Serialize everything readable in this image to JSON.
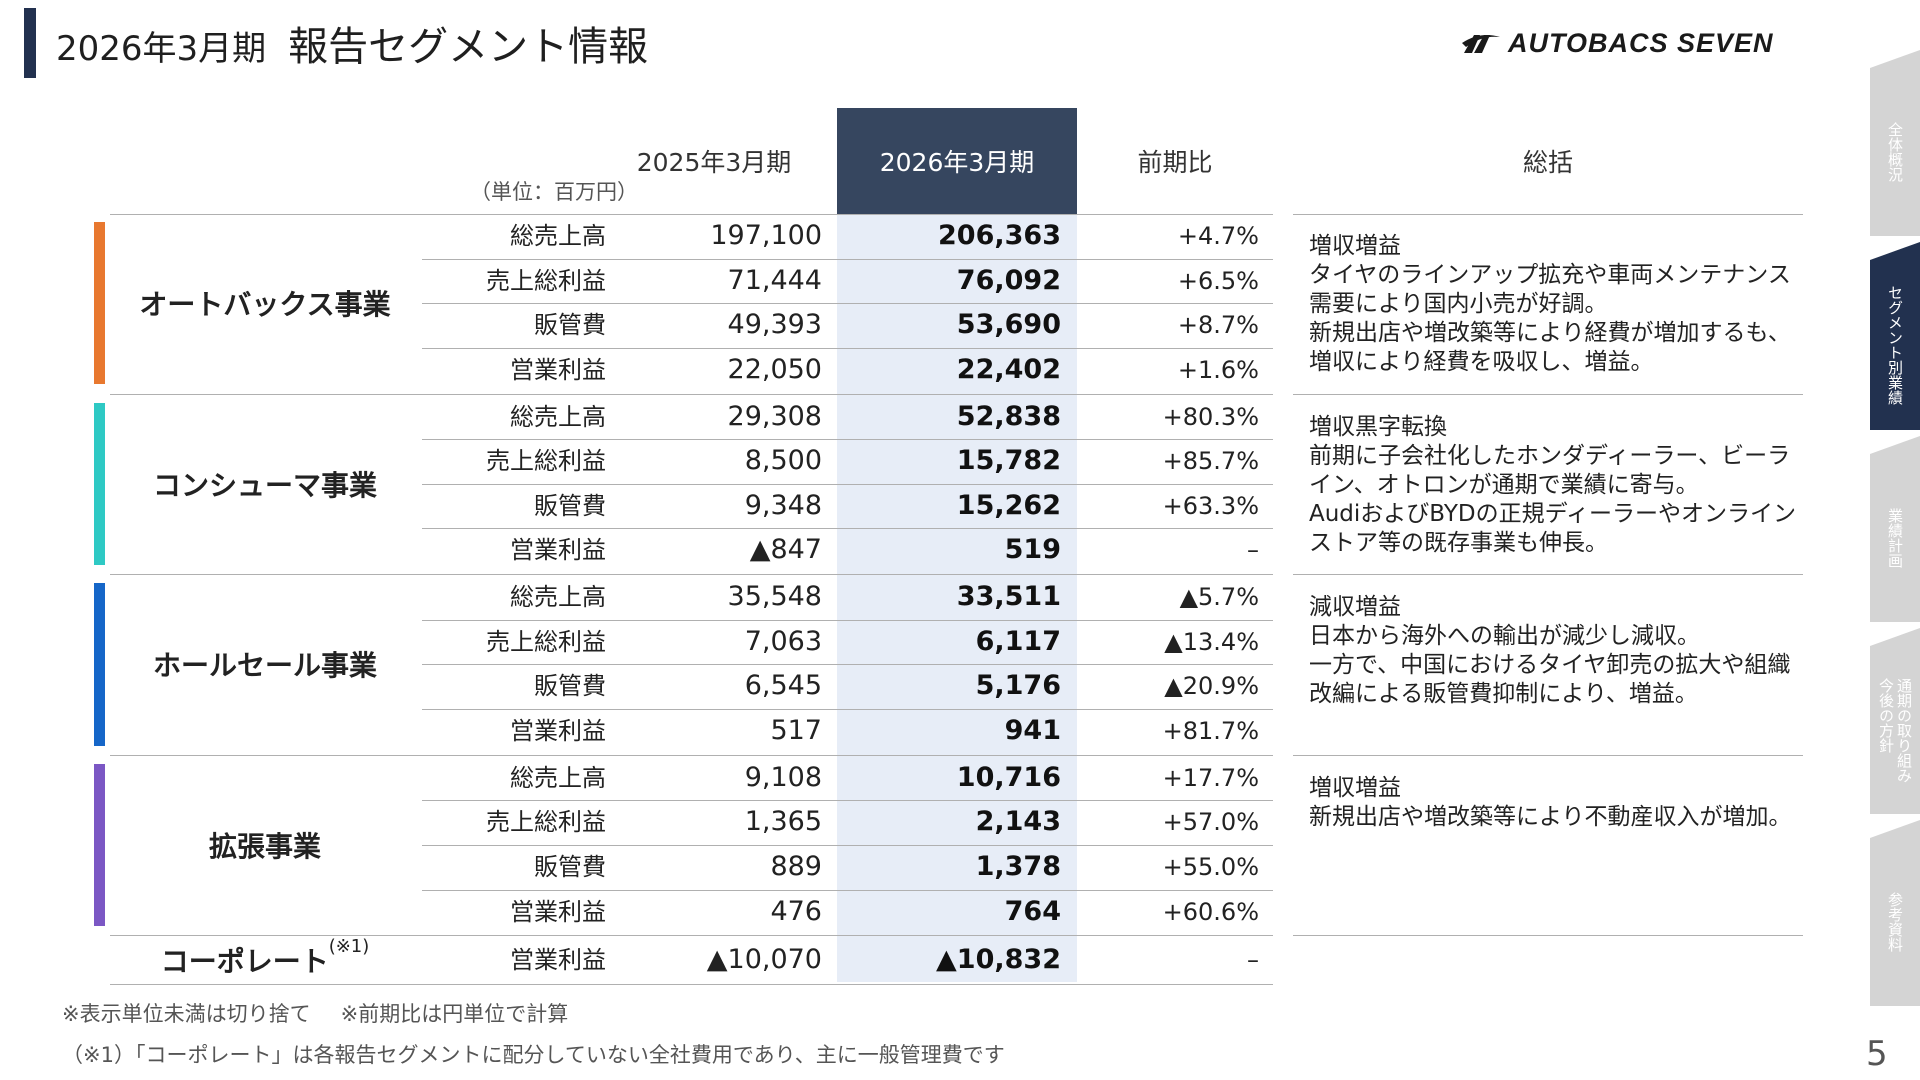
{
  "header": {
    "period": "2026年3月期",
    "title": "報告セグメント情報",
    "logo_text": "AUTOBACS SEVEN"
  },
  "side_tabs": [
    {
      "label": "全体概況",
      "active": false
    },
    {
      "label": "セグメント別業績",
      "active": true
    },
    {
      "label": "業績計画",
      "active": false
    },
    {
      "label": "通期の取り組み\n今後の方針",
      "active": false
    },
    {
      "label": "参考資料",
      "active": false
    }
  ],
  "table": {
    "unit": "（単位：百万円）",
    "col_prev": "2025年3月期",
    "col_cur": "2026年3月期",
    "col_yoy": "前期比",
    "col_summary": "総括",
    "segments": [
      {
        "name": "オートバックス事業",
        "color": "#e8782f",
        "rows": [
          {
            "label": "総売上高",
            "prev": "197,100",
            "cur": "206,363",
            "yoy": "+4.7%"
          },
          {
            "label": "売上総利益",
            "prev": "71,444",
            "cur": "76,092",
            "yoy": "+6.5%"
          },
          {
            "label": "販管費",
            "prev": "49,393",
            "cur": "53,690",
            "yoy": "+8.7%"
          },
          {
            "label": "営業利益",
            "prev": "22,050",
            "cur": "22,402",
            "yoy": "+1.6%"
          }
        ],
        "summary": "増収増益\nタイヤのラインアップ拡充や車両メンテナンス需要により国内小売が好調。\n新規出店や増改築等により経費が増加するも、増収により経費を吸収し、増益。"
      },
      {
        "name": "コンシューマ事業",
        "color": "#2ec9c4",
        "rows": [
          {
            "label": "総売上高",
            "prev": "29,308",
            "cur": "52,838",
            "yoy": "+80.3%"
          },
          {
            "label": "売上総利益",
            "prev": "8,500",
            "cur": "15,782",
            "yoy": "+85.7%"
          },
          {
            "label": "販管費",
            "prev": "9,348",
            "cur": "15,262",
            "yoy": "+63.3%"
          },
          {
            "label": "営業利益",
            "prev": "▲847",
            "cur": "519",
            "yoy": "–"
          }
        ],
        "summary": "増収黒字転換\n前期に子会社化したホンダディーラー、ビーライン、オトロンが通期で業績に寄与。\nAudiおよびBYDの正規ディーラーやオンラインストア等の既存事業も伸長。"
      },
      {
        "name": "ホールセール事業",
        "color": "#1566c8",
        "rows": [
          {
            "label": "総売上高",
            "prev": "35,548",
            "cur": "33,511",
            "yoy": "▲5.7%"
          },
          {
            "label": "売上総利益",
            "prev": "7,063",
            "cur": "6,117",
            "yoy": "▲13.4%"
          },
          {
            "label": "販管費",
            "prev": "6,545",
            "cur": "5,176",
            "yoy": "▲20.9%"
          },
          {
            "label": "営業利益",
            "prev": "517",
            "cur": "941",
            "yoy": "+81.7%"
          }
        ],
        "summary": "減収増益\n日本から海外への輸出が減少し減収。\n一方で、中国におけるタイヤ卸売の拡大や組織改編による販管費抑制により、増益。"
      },
      {
        "name": "拡張事業",
        "color": "#7b57c4",
        "rows": [
          {
            "label": "総売上高",
            "prev": "9,108",
            "cur": "10,716",
            "yoy": "+17.7%"
          },
          {
            "label": "売上総利益",
            "prev": "1,365",
            "cur": "2,143",
            "yoy": "+57.0%"
          },
          {
            "label": "販管費",
            "prev": "889",
            "cur": "1,378",
            "yoy": "+55.0%"
          },
          {
            "label": "営業利益",
            "prev": "476",
            "cur": "764",
            "yoy": "+60.6%"
          }
        ],
        "summary": "増収増益\n新規出店や増改築等により不動産収入が増加。"
      }
    ],
    "corporate": {
      "name": "コーポレート",
      "note_mark": "(※1)",
      "label": "営業利益",
      "prev": "▲10,070",
      "cur": "▲10,832",
      "yoy": "–"
    }
  },
  "notes": {
    "line1a": "※表示単位未満は切り捨て",
    "line1b": "※前期比は円単位で計算",
    "line2": "（※1）「コーポレート」は各報告セグメントに配分していない全社費用であり、主に一般管理費です"
  },
  "page_number": "5"
}
